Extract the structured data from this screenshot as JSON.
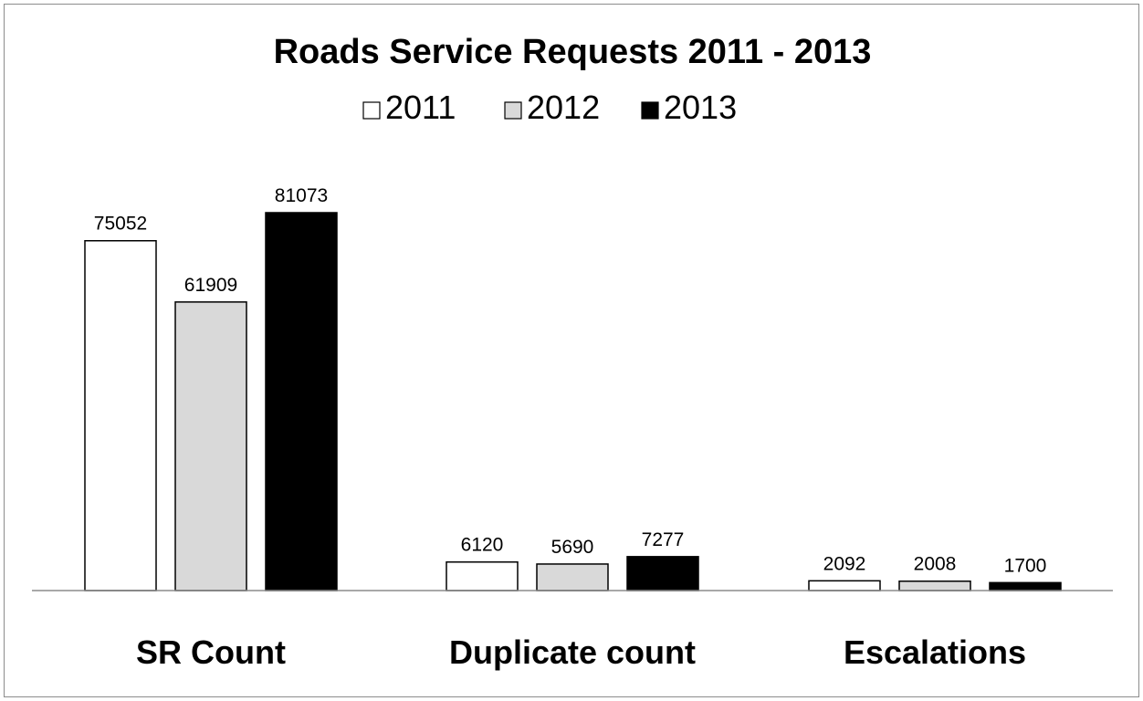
{
  "chart_data": {
    "type": "bar",
    "title": "Roads Service Requests 2011 - 2013",
    "categories": [
      "SR Count",
      "Duplicate count",
      "Escalations"
    ],
    "series": [
      {
        "name": "2011",
        "values": [
          75052,
          6120,
          2092
        ],
        "color": "#ffffff"
      },
      {
        "name": "2012",
        "values": [
          61909,
          5690,
          2008
        ],
        "color": "#d9d9d9"
      },
      {
        "name": "2013",
        "values": [
          81073,
          7277,
          1700
        ],
        "color": "#000000"
      }
    ],
    "ylim": [
      0,
      81073
    ],
    "grid": false,
    "legend_position": "top",
    "xlabel": "",
    "ylabel": ""
  }
}
